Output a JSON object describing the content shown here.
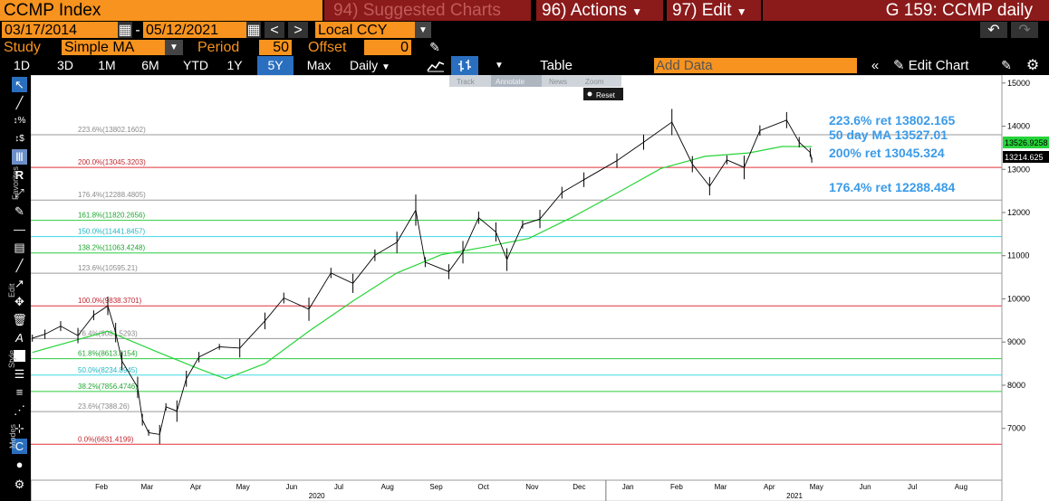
{
  "header": {
    "security": "CCMP Index",
    "suggested": "94) Suggested Charts",
    "actions": "96) Actions",
    "edit": "97) Edit",
    "title": "G 159: CCMP daily"
  },
  "range": {
    "start": "03/17/2014",
    "sep": "-",
    "end": "05/12/2021",
    "currency": "Local CCY"
  },
  "study": {
    "label": "Study",
    "value": "Simple MA",
    "period_label": "Period",
    "period_value": "50",
    "offset_label": "Offset",
    "offset_value": "0"
  },
  "toolbar": {
    "periods": [
      "1D",
      "3D",
      "1M",
      "6M",
      "YTD",
      "1Y",
      "5Y",
      "Max"
    ],
    "selected": "5Y",
    "frequency": "Daily",
    "table": "Table",
    "add_data": "Add Data",
    "edit_chart": "Edit Chart"
  },
  "annotate_toolbar": {
    "track": "Track",
    "annotate": "Annotate",
    "news": "News",
    "zoom": "Zoom",
    "reset": "Reset"
  },
  "sidebar": {
    "favorites": "Favorites",
    "edit": "Edit",
    "style": "Style",
    "modes": "Modes"
  },
  "chart_data": {
    "type": "line",
    "ylim": [
      5800,
      15100
    ],
    "yticks": [
      7000,
      8000,
      9000,
      10000,
      11000,
      12000,
      13000,
      14000,
      15000
    ],
    "xticks": [
      "Feb",
      "Mar",
      "Apr",
      "May",
      "Jun",
      "Jul",
      "Aug",
      "Sep",
      "Oct",
      "Nov",
      "Dec",
      "Jan",
      "Feb",
      "Mar",
      "Apr",
      "May",
      "Jun",
      "Jul",
      "Aug"
    ],
    "year_labels": [
      "2020",
      "2021"
    ],
    "price_series": [
      {
        "d": "2020-01-02",
        "v": 9090
      },
      {
        "d": "2020-01-10",
        "v": 9180
      },
      {
        "d": "2020-01-20",
        "v": 9370
      },
      {
        "d": "2020-01-31",
        "v": 9150
      },
      {
        "d": "2020-02-10",
        "v": 9620
      },
      {
        "d": "2020-02-19",
        "v": 9838
      },
      {
        "d": "2020-02-24",
        "v": 9220
      },
      {
        "d": "2020-02-28",
        "v": 8560
      },
      {
        "d": "2020-03-09",
        "v": 7950
      },
      {
        "d": "2020-03-12",
        "v": 7200
      },
      {
        "d": "2020-03-16",
        "v": 6900
      },
      {
        "d": "2020-03-23",
        "v": 6860
      },
      {
        "d": "2020-03-27",
        "v": 7500
      },
      {
        "d": "2020-04-03",
        "v": 7400
      },
      {
        "d": "2020-04-09",
        "v": 8150
      },
      {
        "d": "2020-04-17",
        "v": 8650
      },
      {
        "d": "2020-04-30",
        "v": 8890
      },
      {
        "d": "2020-05-13",
        "v": 8860
      },
      {
        "d": "2020-05-29",
        "v": 9490
      },
      {
        "d": "2020-06-10",
        "v": 10020
      },
      {
        "d": "2020-06-26",
        "v": 9760
      },
      {
        "d": "2020-07-10",
        "v": 10600
      },
      {
        "d": "2020-07-24",
        "v": 10360
      },
      {
        "d": "2020-08-07",
        "v": 11010
      },
      {
        "d": "2020-08-21",
        "v": 11310
      },
      {
        "d": "2020-09-02",
        "v": 12056
      },
      {
        "d": "2020-09-08",
        "v": 10850
      },
      {
        "d": "2020-09-23",
        "v": 10630
      },
      {
        "d": "2020-10-02",
        "v": 11080
      },
      {
        "d": "2020-10-12",
        "v": 11880
      },
      {
        "d": "2020-10-23",
        "v": 11550
      },
      {
        "d": "2020-10-30",
        "v": 10910
      },
      {
        "d": "2020-11-09",
        "v": 11720
      },
      {
        "d": "2020-11-20",
        "v": 11850
      },
      {
        "d": "2020-12-04",
        "v": 12460
      },
      {
        "d": "2020-12-18",
        "v": 12760
      },
      {
        "d": "2021-01-08",
        "v": 13200
      },
      {
        "d": "2021-01-25",
        "v": 13630
      },
      {
        "d": "2021-02-12",
        "v": 14095
      },
      {
        "d": "2021-02-25",
        "v": 13120
      },
      {
        "d": "2021-03-08",
        "v": 12610
      },
      {
        "d": "2021-03-19",
        "v": 13220
      },
      {
        "d": "2021-03-30",
        "v": 13045
      },
      {
        "d": "2021-04-09",
        "v": 13900
      },
      {
        "d": "2021-04-26",
        "v": 14140
      },
      {
        "d": "2021-05-04",
        "v": 13630
      },
      {
        "d": "2021-05-11",
        "v": 13390
      },
      {
        "d": "2021-05-12",
        "v": 13214
      }
    ],
    "ma_series": [
      {
        "d": "2020-01-02",
        "v": 8760
      },
      {
        "d": "2020-02-19",
        "v": 9250
      },
      {
        "d": "2020-03-23",
        "v": 8750
      },
      {
        "d": "2020-04-17",
        "v": 8380
      },
      {
        "d": "2020-05-04",
        "v": 8150
      },
      {
        "d": "2020-05-29",
        "v": 8500
      },
      {
        "d": "2020-06-26",
        "v": 9250
      },
      {
        "d": "2020-07-24",
        "v": 9950
      },
      {
        "d": "2020-08-21",
        "v": 10600
      },
      {
        "d": "2020-09-18",
        "v": 11020
      },
      {
        "d": "2020-10-16",
        "v": 11200
      },
      {
        "d": "2020-11-13",
        "v": 11400
      },
      {
        "d": "2020-12-11",
        "v": 11900
      },
      {
        "d": "2021-01-08",
        "v": 12450
      },
      {
        "d": "2021-02-05",
        "v": 13020
      },
      {
        "d": "2021-03-05",
        "v": 13300
      },
      {
        "d": "2021-04-02",
        "v": 13380
      },
      {
        "d": "2021-04-23",
        "v": 13530
      },
      {
        "d": "2021-05-12",
        "v": 13527
      }
    ],
    "fib_levels": [
      {
        "label": "223.6%(13802.1602)",
        "value": 13802.1602,
        "color": "#9a9a9a"
      },
      {
        "label": "200.0%(13045.3203)",
        "value": 13045.3203,
        "color": "#e0313a"
      },
      {
        "label": "176.4%(12288.4805)",
        "value": 12288.4805,
        "color": "#9a9a9a"
      },
      {
        "label": "161.8%(11820.2656)",
        "value": 11820.2656,
        "color": "#2ecc40"
      },
      {
        "label": "150.0%(11441.8457)",
        "value": 11441.8457,
        "color": "#3fd9e6"
      },
      {
        "label": "138.2%(11063.4248)",
        "value": 11063.4248,
        "color": "#2ecc40"
      },
      {
        "label": "123.6%(10595.21)",
        "value": 10595.21,
        "color": "#9a9a9a"
      },
      {
        "label": "100.0%(9838.3701)",
        "value": 9838.3701,
        "color": "#e0313a"
      },
      {
        "label": "76.4%(9081.5293)",
        "value": 9081.5293,
        "color": "#9a9a9a"
      },
      {
        "label": "61.8%(8613.3154)",
        "value": 8613.3154,
        "color": "#2ecc40"
      },
      {
        "label": "50.0%(8234.8945)",
        "value": 8234.8945,
        "color": "#3fd9e6"
      },
      {
        "label": "38.2%(7856.4746)",
        "value": 7856.4746,
        "color": "#2ecc40"
      },
      {
        "label": "23.6%(7388.26)",
        "value": 7388.26,
        "color": "#9a9a9a"
      },
      {
        "label": "0.0%(6631.4199)",
        "value": 6631.4199,
        "color": "#e0313a"
      }
    ],
    "annotations": [
      {
        "text": "223.6% ret 13802.165",
        "value": 13802.165
      },
      {
        "text": "50 day MA 13527.01",
        "value": 13527.01
      },
      {
        "text": "200% ret 13045.324",
        "value": 13045.324
      },
      {
        "text": "176.4% ret 12288.484",
        "value": 12288.484
      }
    ],
    "last_values": [
      {
        "text": "13526.9258",
        "value": 13526.9258,
        "color": "#27d43a"
      },
      {
        "text": "13214.625",
        "value": 13214.625,
        "color": "#ffffff"
      }
    ],
    "colors": {
      "background": "#ffffff",
      "price": "#000000",
      "ma": "#27d43a",
      "annotation": "#3c9be8",
      "accent": "#f7931e",
      "header_bar": "#8b1a1a"
    }
  }
}
